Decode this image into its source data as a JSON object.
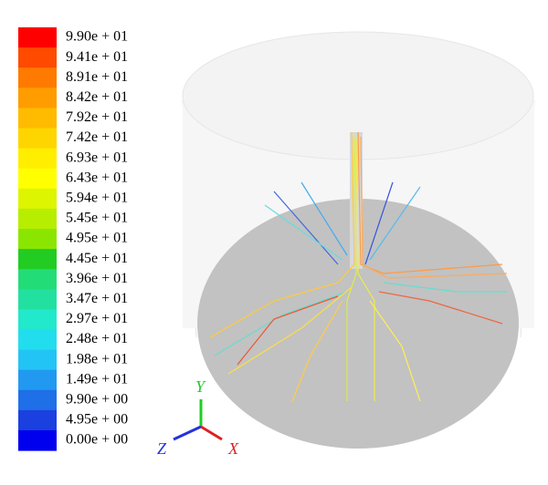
{
  "legend": {
    "labels": [
      "9.90e + 01",
      "9.41e + 01",
      "8.91e + 01",
      "8.42e + 01",
      "7.92e + 01",
      "7.42e + 01",
      "6.93e + 01",
      "6.43e + 01",
      "5.94e + 01",
      "5.45e + 01",
      "4.95e + 01",
      "4.45e + 01",
      "3.96e + 01",
      "3.47e + 01",
      "2.97e + 01",
      "2.48e + 01",
      "1.98e + 01",
      "1.49e + 01",
      "9.90e + 00",
      "4.95e + 00",
      "0.00e + 00"
    ],
    "colors": [
      "#ff0000",
      "#ff4a00",
      "#ff7a00",
      "#ff9c00",
      "#ffbb00",
      "#ffd500",
      "#ffee00",
      "#ffff00",
      "#ddf500",
      "#b7ee00",
      "#8ae600",
      "#22cc22",
      "#22dd77",
      "#22e0a0",
      "#22e8cc",
      "#22ddee",
      "#22c4f5",
      "#2299f0",
      "#1f6fe8",
      "#1a40e0",
      "#0000ee"
    ]
  },
  "axes": {
    "y": "Y",
    "z": "Z",
    "x": "X"
  }
}
